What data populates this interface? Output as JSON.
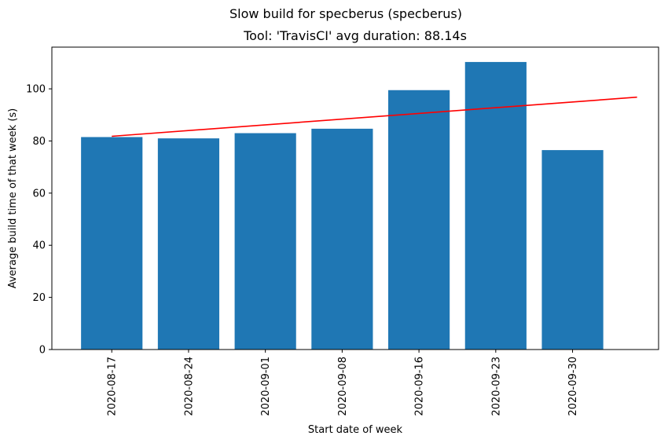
{
  "figure": {
    "suptitle": "Slow build for specberus (specberus)"
  },
  "chart_data": {
    "type": "bar",
    "title": "Tool: 'TravisCI' avg duration: 88.14s",
    "xlabel": "Start date of week",
    "ylabel": "Average build time of that week (s)",
    "categories": [
      "2020-08-17",
      "2020-08-24",
      "2020-09-01",
      "2020-09-08",
      "2020-09-16",
      "2020-09-23",
      "2020-09-30"
    ],
    "values": [
      81.5,
      81.0,
      83.0,
      84.7,
      99.5,
      110.3,
      76.5
    ],
    "bar_color": "#1f77b4",
    "trend_line": {
      "color": "#ff0000",
      "y_start": 81.8,
      "y_end": 96.8
    },
    "ylim": [
      0,
      116
    ],
    "yticks": [
      0,
      20,
      40,
      60,
      80,
      100
    ],
    "grid": false,
    "legend": "none"
  }
}
